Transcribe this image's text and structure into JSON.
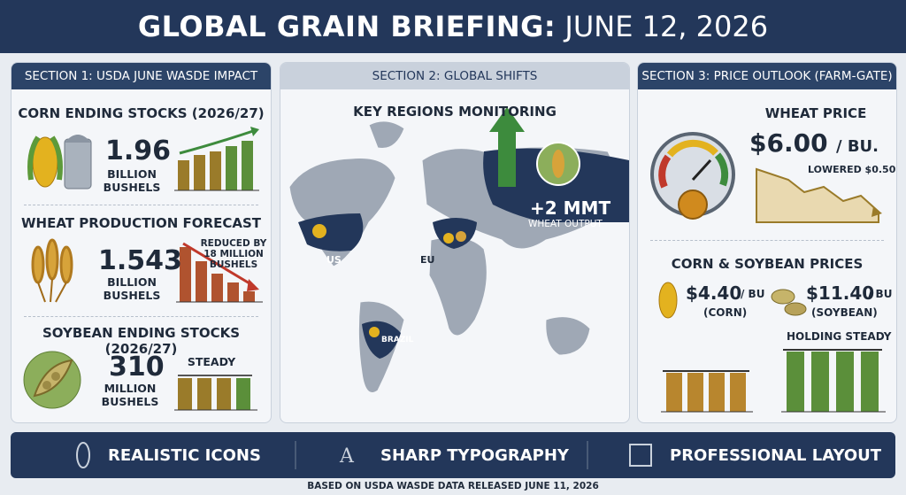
{
  "header": {
    "title": "GLOBAL GRAIN BRIEFING:",
    "date": "JUNE 12, 2026"
  },
  "section1": {
    "title": "SECTION 1: USDA JUNE WASDE IMPACT",
    "items": [
      {
        "label": "CORN ENDING STOCKS (2026/27)",
        "value": "1.96",
        "unit": "BILLION BUSHELS"
      },
      {
        "label": "WHEAT PRODUCTION FORECAST",
        "value": "1.543",
        "unit": "BILLION BUSHELS",
        "note": "REDUCED BY 18 MILLION BUSHELS"
      },
      {
        "label": "SOYBEAN ENDING STOCKS (2026/27)",
        "value": "310",
        "unit": "MILLION BUSHELS",
        "note": "STEADY"
      }
    ]
  },
  "section2": {
    "title": "SECTION 2: GLOBAL SHIFTS",
    "subtitle": "KEY REGIONS MONITORING",
    "regions": [
      "US",
      "EU",
      "BRAZIL"
    ],
    "callout": {
      "value": "+2 MMT",
      "label": "WHEAT OUTPUT"
    }
  },
  "section3": {
    "title": "SECTION 3: PRICE OUTLOOK (FARM-GATE)",
    "wheat": {
      "label": "WHEAT PRICE",
      "price": "$6.00",
      "unit": "/ BU.",
      "note": "LOWERED $0.50"
    },
    "row_title": "CORN & SOYBEAN PRICES",
    "corn": {
      "price": "$4.40",
      "unit": "/ BU",
      "name": "(CORN)"
    },
    "soybean": {
      "price": "$11.40",
      "unit": "/ BU",
      "name": "(SOYBEAN)"
    },
    "note": "HOLDING STEADY"
  },
  "footer": {
    "features": [
      "REALISTIC ICONS",
      "SHARP TYPOGRAPHY",
      "PROFESSIONAL LAYOUT"
    ],
    "note": "BASED ON USDA WASDE DATA RELEASED JUNE 11, 2026"
  }
}
